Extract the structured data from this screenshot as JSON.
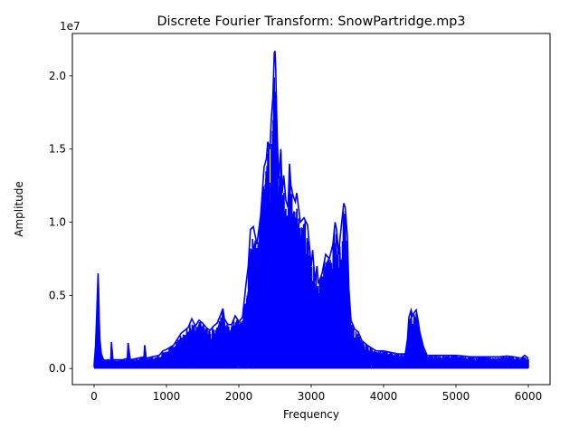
{
  "chart_data": {
    "type": "line",
    "title": "Discrete Fourier Transform: SnowPartridge.mp3",
    "xlabel": "Frequency",
    "ylabel": "Amplitude",
    "y_offset_label": "1e7",
    "xlim": [
      -300,
      6300
    ],
    "ylim": [
      -1.1,
      22.9
    ],
    "y_scale_factor": 10000000,
    "grid": false,
    "x_ticks": [
      {
        "value": 0,
        "label": "0"
      },
      {
        "value": 1000,
        "label": "1000"
      },
      {
        "value": 2000,
        "label": "2000"
      },
      {
        "value": 3000,
        "label": "3000"
      },
      {
        "value": 4000,
        "label": "4000"
      },
      {
        "value": 5000,
        "label": "5000"
      },
      {
        "value": 6000,
        "label": "6000"
      }
    ],
    "y_ticks": [
      {
        "value": 0.0,
        "label": "0.0"
      },
      {
        "value": 0.5,
        "label": "0.5"
      },
      {
        "value": 1.0,
        "label": "1.0"
      },
      {
        "value": 1.5,
        "label": "1.5"
      },
      {
        "value": 2.0,
        "label": "2.0"
      }
    ],
    "series": [
      {
        "color": "#0000ff",
        "x_min": 0,
        "x_max": 6000,
        "baseline": 0.05,
        "envelope_x": [
          0,
          20,
          40,
          55,
          62,
          70,
          80,
          100,
          130,
          160,
          200,
          230,
          240,
          260,
          300,
          400,
          460,
          470,
          500,
          600,
          690,
          700,
          720,
          800,
          900,
          950,
          1000,
          1100,
          1200,
          1300,
          1350,
          1400,
          1450,
          1500,
          1550,
          1600,
          1650,
          1700,
          1750,
          1780,
          1800,
          1850,
          1900,
          1950,
          2000,
          2050,
          2100,
          2130,
          2160,
          2200,
          2250,
          2300,
          2350,
          2380,
          2400,
          2430,
          2450,
          2470,
          2490,
          2500,
          2510,
          2520,
          2530,
          2550,
          2580,
          2600,
          2620,
          2650,
          2680,
          2700,
          2720,
          2750,
          2780,
          2800,
          2850,
          2900,
          2950,
          3000,
          3020,
          3050,
          3080,
          3100,
          3150,
          3200,
          3250,
          3300,
          3330,
          3350,
          3380,
          3400,
          3430,
          3450,
          3470,
          3500,
          3520,
          3550,
          3600,
          3650,
          3700,
          3800,
          3900,
          4000,
          4100,
          4200,
          4300,
          4330,
          4350,
          4380,
          4400,
          4420,
          4450,
          4480,
          4500,
          4550,
          4600,
          4700,
          4800,
          4900,
          5000,
          5100,
          5200,
          5300,
          5400,
          5500,
          5600,
          5700,
          5800,
          5900,
          5950,
          6000
        ],
        "envelope_y": [
          0.2,
          1.5,
          4.2,
          6.5,
          5.5,
          3.5,
          2.0,
          1.0,
          0.6,
          0.55,
          0.6,
          0.5,
          1.8,
          0.6,
          0.6,
          0.6,
          0.7,
          1.75,
          0.6,
          0.7,
          0.8,
          1.6,
          0.7,
          0.8,
          0.9,
          1.2,
          1.3,
          1.6,
          2.4,
          2.8,
          3.4,
          2.9,
          3.3,
          3.1,
          2.8,
          2.6,
          2.9,
          3.1,
          3.7,
          4.1,
          3.4,
          3.0,
          3.0,
          3.6,
          3.2,
          3.5,
          5.8,
          7.0,
          9.5,
          9.7,
          8.5,
          10.4,
          13.8,
          14.3,
          15.5,
          15.0,
          17.2,
          18.5,
          21.6,
          21.7,
          20.5,
          18.0,
          16.0,
          13.0,
          15.0,
          12.0,
          13.2,
          11.5,
          11.0,
          14.0,
          12.5,
          11.8,
          11.4,
          12.0,
          10.0,
          10.3,
          9.8,
          7.0,
          8.1,
          6.0,
          7.0,
          5.8,
          6.5,
          7.8,
          7.5,
          8.5,
          10.0,
          9.5,
          7.8,
          9.0,
          10.4,
          11.3,
          11.0,
          9.0,
          5.5,
          3.3,
          2.7,
          2.5,
          1.9,
          1.5,
          1.2,
          1.2,
          1.1,
          1.0,
          1.0,
          2.0,
          3.5,
          4.0,
          3.6,
          3.8,
          4.0,
          3.2,
          2.5,
          1.5,
          0.9,
          0.9,
          0.9,
          0.9,
          0.9,
          0.85,
          0.8,
          0.8,
          0.8,
          0.8,
          0.8,
          0.85,
          0.8,
          0.7,
          0.9,
          0.7
        ]
      }
    ]
  }
}
